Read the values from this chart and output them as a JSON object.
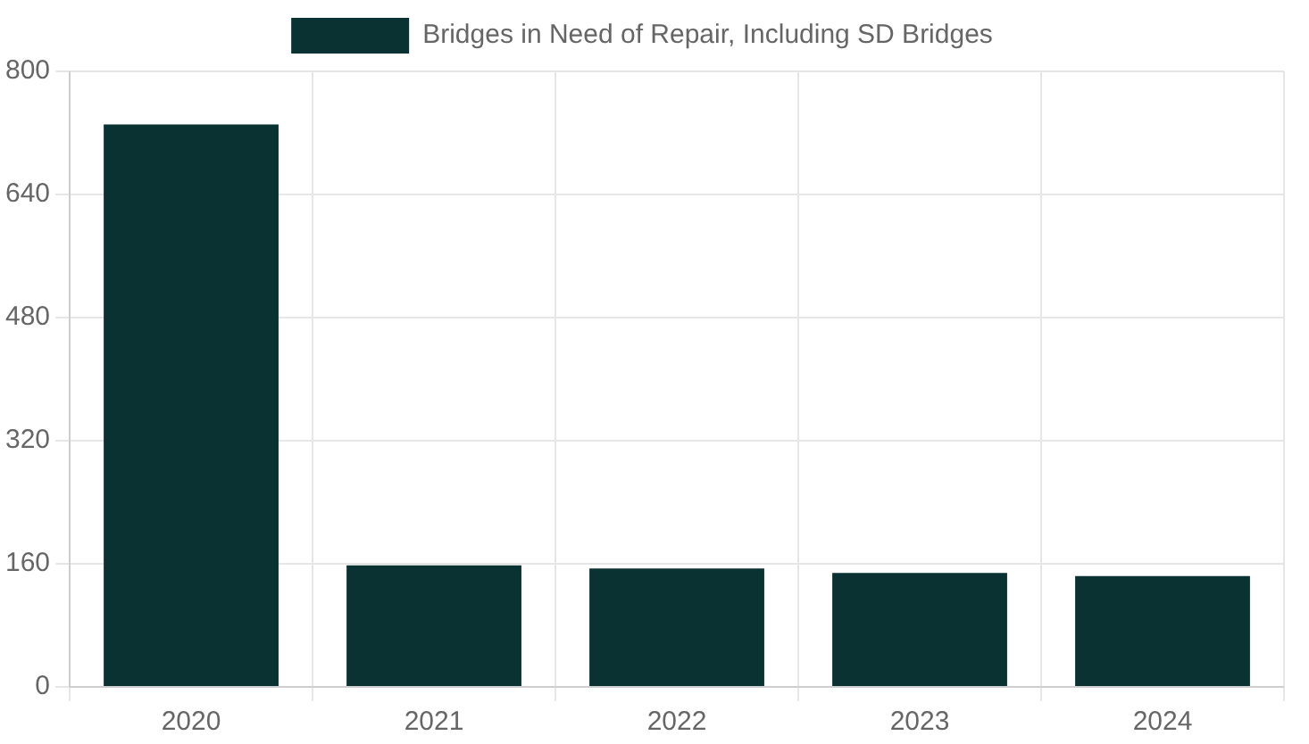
{
  "chart_data": {
    "type": "bar",
    "categories": [
      "2020",
      "2021",
      "2022",
      "2023",
      "2024"
    ],
    "series": [
      {
        "name": "Bridges in Need of Repair, Including SD Bridges",
        "color": "#0b3233",
        "values": [
          731,
          158,
          154,
          148,
          144
        ]
      }
    ],
    "ylim": [
      0,
      800
    ],
    "yticks": [
      0,
      160,
      320,
      480,
      640,
      800
    ],
    "grid": true,
    "legend": "top"
  }
}
